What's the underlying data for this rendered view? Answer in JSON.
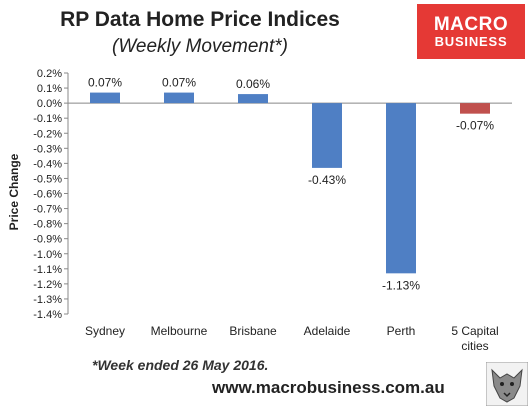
{
  "header": {
    "title": "RP Data Home Price Indices",
    "subtitle": "(Weekly Movement*)"
  },
  "logo": {
    "line1": "MACRO",
    "line2": "BUSINESS"
  },
  "footnote": "*Week ended 26 May 2016.",
  "url": "www.macrobusiness.com.au",
  "colors": {
    "bar": "#4f7fc4",
    "highlight": "#c0504d",
    "logo_bg": "#e53935"
  },
  "chart_data": {
    "type": "bar",
    "title": "RP Data Home Price Indices",
    "subtitle": "(Weekly Movement*)",
    "ylabel": "Price Change",
    "xlabel": "",
    "ylim": [
      -1.4,
      0.2
    ],
    "ytick_step": 0.1,
    "ytick_labels": [
      "0.2%",
      "0.1%",
      "0.0%",
      "-0.1%",
      "-0.2%",
      "-0.3%",
      "-0.4%",
      "-0.5%",
      "-0.6%",
      "-0.7%",
      "-0.8%",
      "-0.9%",
      "-1.0%",
      "-1.1%",
      "-1.2%",
      "-1.3%",
      "-1.4%"
    ],
    "categories": [
      [
        "Sydney"
      ],
      [
        "Melbourne"
      ],
      [
        "Brisbane"
      ],
      [
        "Adelaide"
      ],
      [
        "Perth"
      ],
      [
        "5 Capital",
        "cities"
      ]
    ],
    "values": [
      0.07,
      0.07,
      0.06,
      -0.43,
      -1.13,
      -0.07
    ],
    "data_labels": [
      "0.07%",
      "0.07%",
      "0.06%",
      "-0.43%",
      "-1.13%",
      "-0.07%"
    ],
    "bar_colors": [
      "#4f7fc4",
      "#4f7fc4",
      "#4f7fc4",
      "#4f7fc4",
      "#4f7fc4",
      "#c0504d"
    ],
    "grid": false,
    "legend": "none"
  }
}
